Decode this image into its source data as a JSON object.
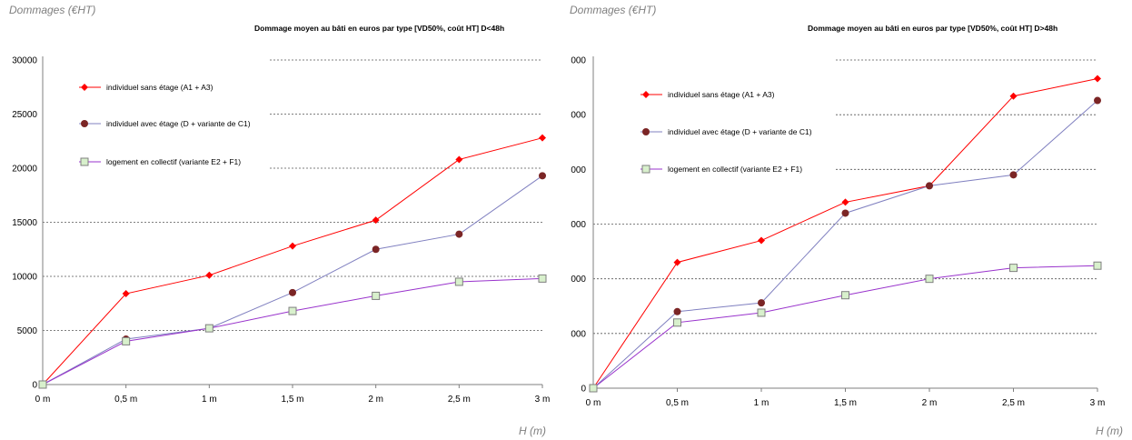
{
  "chart_data": [
    {
      "type": "line",
      "title": "Dommage moyen au bâti en euros par type [VD50%, coût HT] D<48h",
      "ylabel": "Dommages (€HT)",
      "xlabel": "H (m)",
      "categories": [
        "0 m",
        "0,5 m",
        "1 m",
        "1,5 m",
        "2 m",
        "2,5 m",
        "3 m"
      ],
      "yticks": [
        "0",
        "5000",
        "10000",
        "15000",
        "20000",
        "25000",
        "30000"
      ],
      "ylim": [
        0,
        30000
      ],
      "grid": true,
      "legend_position": "top-left",
      "series": [
        {
          "name": "individuel sans étage (A1 + A3)",
          "color": "#ff0000",
          "marker": "diamond",
          "values": [
            0,
            8400,
            10100,
            12800,
            15200,
            20800,
            22800
          ]
        },
        {
          "name": "individuel avec étage (D + variante de C1)",
          "color": "#8080c0",
          "marker": "circle",
          "values": [
            0,
            4200,
            5200,
            8500,
            12500,
            13900,
            19300
          ]
        },
        {
          "name": "logement en collectif (variante E2 + F1)",
          "color": "#9933cc",
          "marker": "square",
          "values": [
            0,
            4000,
            5200,
            6800,
            8200,
            9500,
            9800
          ]
        }
      ]
    },
    {
      "type": "line",
      "title": "Dommage moyen au bâti en euros par type [VD50%, coût HT] D>48h",
      "ylabel": "Dommages (€HT)",
      "xlabel": "H (m)",
      "categories": [
        "0 m",
        "0,5 m",
        "1 m",
        "1,5 m",
        "2 m",
        "2,5 m",
        "3 m"
      ],
      "yticks": [
        "0",
        "000",
        "000",
        "000",
        "000",
        "000",
        "000"
      ],
      "ylim": [
        0,
        30000
      ],
      "grid": true,
      "legend_position": "top-left",
      "series": [
        {
          "name": "individuel sans étage (A1 + A3)",
          "color": "#ff0000",
          "marker": "diamond",
          "values": [
            0,
            11500,
            13500,
            17000,
            18500,
            26700,
            28300
          ]
        },
        {
          "name": "individuel avec étage (D + variante de C1)",
          "color": "#8080c0",
          "marker": "circle",
          "values": [
            0,
            7000,
            7800,
            16000,
            18500,
            19500,
            26300
          ]
        },
        {
          "name": "logement en collectif (variante E2 + F1)",
          "color": "#9933cc",
          "marker": "square",
          "values": [
            0,
            6000,
            6900,
            8500,
            10000,
            11000,
            11200
          ]
        }
      ]
    }
  ]
}
